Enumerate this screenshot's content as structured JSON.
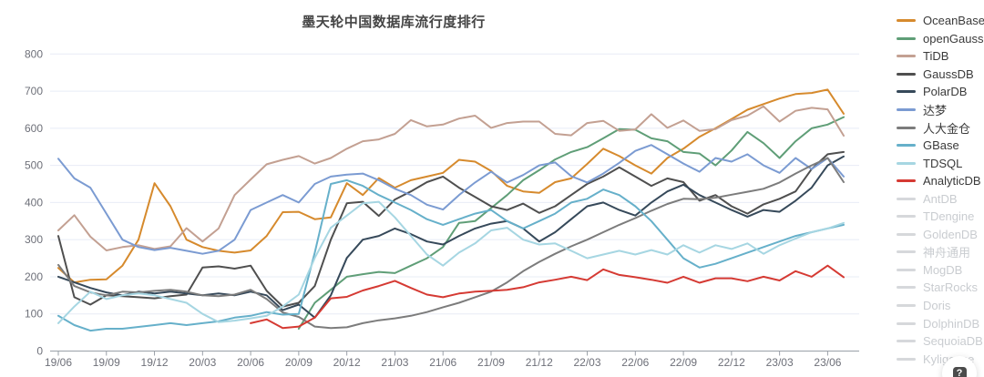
{
  "title": "墨天轮中国数据库流行度排行",
  "help_button": {
    "label": "?"
  },
  "colors": {
    "grid": "#e8ecf6",
    "axis": "#9aa0a8",
    "tick_label": "#6e7079",
    "title": "#454545",
    "legend_text": "#3a3a3a",
    "legend_disabled_text": "#c9ccd0",
    "legend_disabled_swatch": "#d6d8db",
    "background": "#ffffff"
  },
  "chart_data": {
    "type": "line",
    "title": "墨天轮中国数据库流行度排行",
    "xlabel": "",
    "ylabel": "",
    "ylim": [
      0,
      800
    ],
    "y_ticks": [
      0,
      100,
      200,
      300,
      400,
      500,
      600,
      700,
      800
    ],
    "grid": true,
    "legend_position": "right",
    "x_tick_labels": [
      "19/06",
      "19/09",
      "19/12",
      "20/03",
      "20/06",
      "20/09",
      "20/12",
      "21/03",
      "21/06",
      "21/09",
      "21/12",
      "22/03",
      "22/06",
      "22/09",
      "22/12",
      "23/03",
      "23/06"
    ],
    "x_categories": [
      "19/06",
      "19/07",
      "19/08",
      "19/09",
      "19/10",
      "19/11",
      "19/12",
      "20/01",
      "20/02",
      "20/03",
      "20/04",
      "20/05",
      "20/06",
      "20/07",
      "20/08",
      "20/09",
      "20/10",
      "20/11",
      "20/12",
      "21/01",
      "21/02",
      "21/03",
      "21/04",
      "21/05",
      "21/06",
      "21/07",
      "21/08",
      "21/09",
      "21/10",
      "21/11",
      "21/12",
      "22/01",
      "22/02",
      "22/03",
      "22/04",
      "22/05",
      "22/06",
      "22/07",
      "22/08",
      "22/09",
      "22/10",
      "22/11",
      "22/12",
      "23/01",
      "23/02",
      "23/03",
      "23/04",
      "23/05",
      "23/06",
      "23/07"
    ],
    "series": [
      {
        "name": "OceanBase",
        "color": "#d68a2d",
        "values": [
          224,
          185,
          192,
          193,
          230,
          300,
          452,
          390,
          300,
          280,
          270,
          265,
          271,
          310,
          374,
          375,
          355,
          360,
          452,
          420,
          466,
          440,
          460,
          470,
          480,
          515,
          510,
          485,
          445,
          430,
          426,
          455,
          465,
          504,
          545,
          525,
          500,
          478,
          520,
          545,
          577,
          600,
          625,
          650,
          665,
          680,
          692,
          695,
          704,
          639
        ]
      },
      {
        "name": "openGauss",
        "color": "#5f9e77",
        "values": [
          null,
          null,
          null,
          null,
          null,
          null,
          null,
          null,
          null,
          null,
          null,
          null,
          null,
          null,
          null,
          60,
          130,
          165,
          200,
          207,
          213,
          210,
          230,
          250,
          280,
          345,
          350,
          385,
          420,
          460,
          487,
          516,
          536,
          549,
          573,
          598,
          596,
          573,
          565,
          536,
          532,
          500,
          540,
          590,
          560,
          520,
          565,
          600,
          610,
          630
        ]
      },
      {
        "name": "TiDB",
        "color": "#c3a092",
        "values": [
          325,
          366,
          308,
          271,
          280,
          285,
          275,
          282,
          331,
          295,
          330,
          420,
          462,
          503,
          515,
          525,
          505,
          520,
          545,
          565,
          570,
          585,
          622,
          605,
          610,
          626,
          634,
          601,
          614,
          618,
          618,
          585,
          581,
          614,
          620,
          593,
          597,
          638,
          601,
          621,
          593,
          598,
          622,
          634,
          659,
          618,
          647,
          655,
          651,
          580
        ]
      },
      {
        "name": "GaussDB",
        "color": "#4f4f4f",
        "values": [
          310,
          145,
          125,
          150,
          148,
          145,
          142,
          148,
          152,
          225,
          228,
          222,
          230,
          162,
          120,
          130,
          175,
          300,
          398,
          402,
          364,
          408,
          430,
          455,
          470,
          440,
          415,
          390,
          380,
          397,
          372,
          390,
          420,
          450,
          470,
          495,
          470,
          445,
          465,
          455,
          405,
          420,
          390,
          370,
          395,
          410,
          430,
          490,
          530,
          536
        ]
      },
      {
        "name": "PolarDB",
        "color": "#36495a",
        "values": [
          200,
          185,
          170,
          158,
          150,
          160,
          155,
          160,
          155,
          150,
          155,
          150,
          160,
          150,
          110,
          125,
          90,
          150,
          251,
          300,
          310,
          330,
          315,
          295,
          287,
          310,
          330,
          343,
          350,
          330,
          295,
          320,
          355,
          390,
          400,
          380,
          365,
          400,
          430,
          448,
          420,
          400,
          380,
          362,
          380,
          375,
          405,
          440,
          500,
          524
        ]
      },
      {
        "name": "达梦",
        "color": "#7b9bd2",
        "values": [
          518,
          465,
          440,
          370,
          300,
          280,
          272,
          278,
          270,
          262,
          270,
          300,
          380,
          400,
          420,
          400,
          450,
          470,
          475,
          478,
          460,
          437,
          420,
          394,
          381,
          420,
          454,
          483,
          454,
          474,
          500,
          508,
          471,
          454,
          478,
          507,
          539,
          555,
          530,
          505,
          483,
          520,
          510,
          530,
          500,
          480,
          520,
          490,
          520,
          470
        ]
      },
      {
        "name": "人大金仓",
        "color": "#7c7c7c",
        "values": [
          232,
          175,
          158,
          150,
          160,
          158,
          162,
          165,
          160,
          150,
          148,
          152,
          165,
          140,
          104,
          92,
          66,
          62,
          64,
          75,
          83,
          88,
          95,
          105,
          118,
          130,
          145,
          160,
          185,
          215,
          240,
          262,
          282,
          300,
          320,
          340,
          358,
          378,
          396,
          410,
          409,
          413,
          421,
          429,
          437,
          454,
          478,
          500,
          520,
          455
        ]
      },
      {
        "name": "GBase",
        "color": "#66b0ca",
        "values": [
          95,
          70,
          55,
          60,
          60,
          65,
          70,
          75,
          70,
          75,
          80,
          90,
          95,
          105,
          98,
          100,
          265,
          450,
          460,
          445,
          420,
          400,
          380,
          355,
          340,
          355,
          370,
          380,
          350,
          330,
          350,
          370,
          400,
          410,
          435,
          420,
          390,
          350,
          300,
          250,
          225,
          235,
          250,
          265,
          280,
          295,
          310,
          320,
          330,
          340
        ]
      },
      {
        "name": "TDSQL",
        "color": "#a6d6e2",
        "values": [
          75,
          120,
          160,
          140,
          150,
          155,
          150,
          140,
          130,
          100,
          78,
          82,
          88,
          95,
          120,
          152,
          251,
          332,
          365,
          398,
          402,
          360,
          310,
          260,
          230,
          265,
          290,
          325,
          332,
          300,
          287,
          290,
          270,
          250,
          260,
          270,
          260,
          272,
          260,
          285,
          265,
          285,
          275,
          290,
          262,
          285,
          303,
          320,
          330,
          345
        ]
      },
      {
        "name": "AnalyticDB",
        "color": "#d53a33",
        "values": [
          null,
          null,
          null,
          null,
          null,
          null,
          null,
          null,
          null,
          null,
          null,
          null,
          75,
          85,
          62,
          66,
          90,
          142,
          146,
          163,
          175,
          189,
          170,
          152,
          145,
          155,
          160,
          162,
          165,
          172,
          185,
          192,
          200,
          191,
          220,
          205,
          199,
          192,
          184,
          200,
          184,
          196,
          196,
          188,
          200,
          190,
          215,
          200,
          230,
          199
        ]
      }
    ],
    "disabled_series": [
      "AntDB",
      "TDengine",
      "GoldenDB",
      "神舟通用",
      "MogDB",
      "StarRocks",
      "Doris",
      "DolphinDB",
      "SequoiaDB",
      "Kyligence"
    ]
  }
}
